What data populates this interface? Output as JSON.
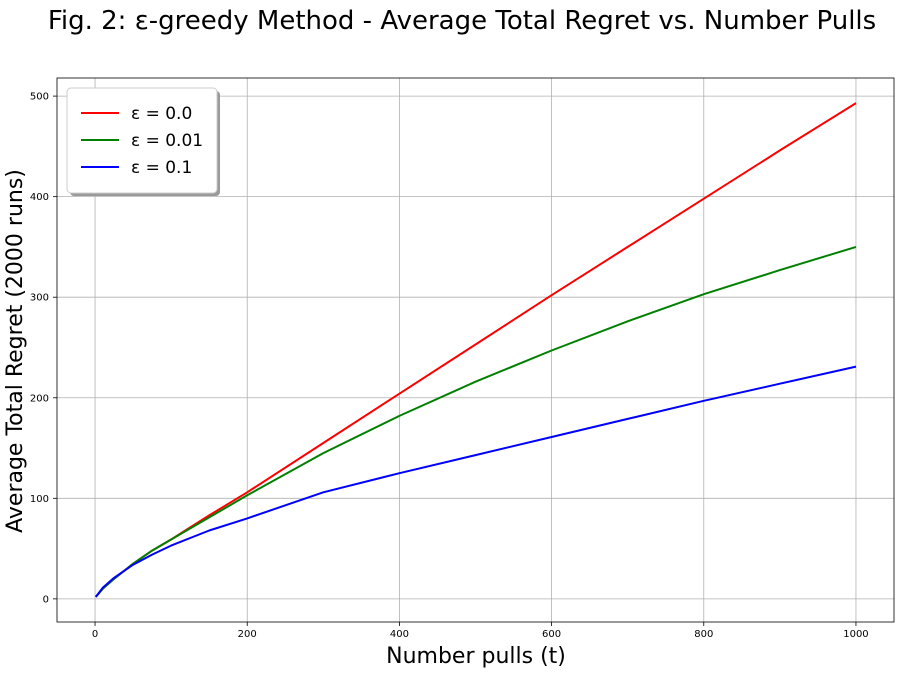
{
  "chart_data": {
    "type": "line",
    "title": "Fig. 2: ε-greedy Method - Average Total Regret vs. Number Pulls",
    "xlabel": "Number pulls (t)",
    "ylabel": "Average Total Regret (2000 runs)",
    "xlim": [
      -50,
      1050
    ],
    "ylim": [
      -23,
      518
    ],
    "xticks": [
      0,
      200,
      400,
      600,
      800,
      1000
    ],
    "yticks": [
      0,
      100,
      200,
      300,
      400,
      500
    ],
    "grid": true,
    "legend_position": "top-left",
    "series": [
      {
        "name": "ε = 0.0",
        "color": "#ff0000",
        "x": [
          1,
          10,
          25,
          50,
          75,
          100,
          150,
          200,
          300,
          400,
          500,
          600,
          700,
          800,
          900,
          1000
        ],
        "y": [
          2,
          10,
          20,
          35,
          48,
          59,
          83,
          106,
          155,
          204,
          253,
          302,
          350,
          398,
          446,
          493
        ]
      },
      {
        "name": "ε = 0.01",
        "color": "#008000",
        "x": [
          1,
          10,
          25,
          50,
          75,
          100,
          150,
          200,
          300,
          400,
          500,
          600,
          700,
          800,
          900,
          1000
        ],
        "y": [
          2,
          10,
          20,
          35,
          48,
          59,
          81,
          103,
          145,
          182,
          216,
          247,
          276,
          303,
          327,
          350
        ]
      },
      {
        "name": "ε = 0.1",
        "color": "#0000ff",
        "x": [
          1,
          10,
          25,
          50,
          75,
          100,
          150,
          200,
          300,
          400,
          500,
          600,
          700,
          800,
          900,
          1000
        ],
        "y": [
          2,
          11,
          21,
          34,
          44,
          53,
          68,
          80,
          106,
          125,
          143,
          161,
          179,
          197,
          214,
          231
        ]
      }
    ]
  }
}
